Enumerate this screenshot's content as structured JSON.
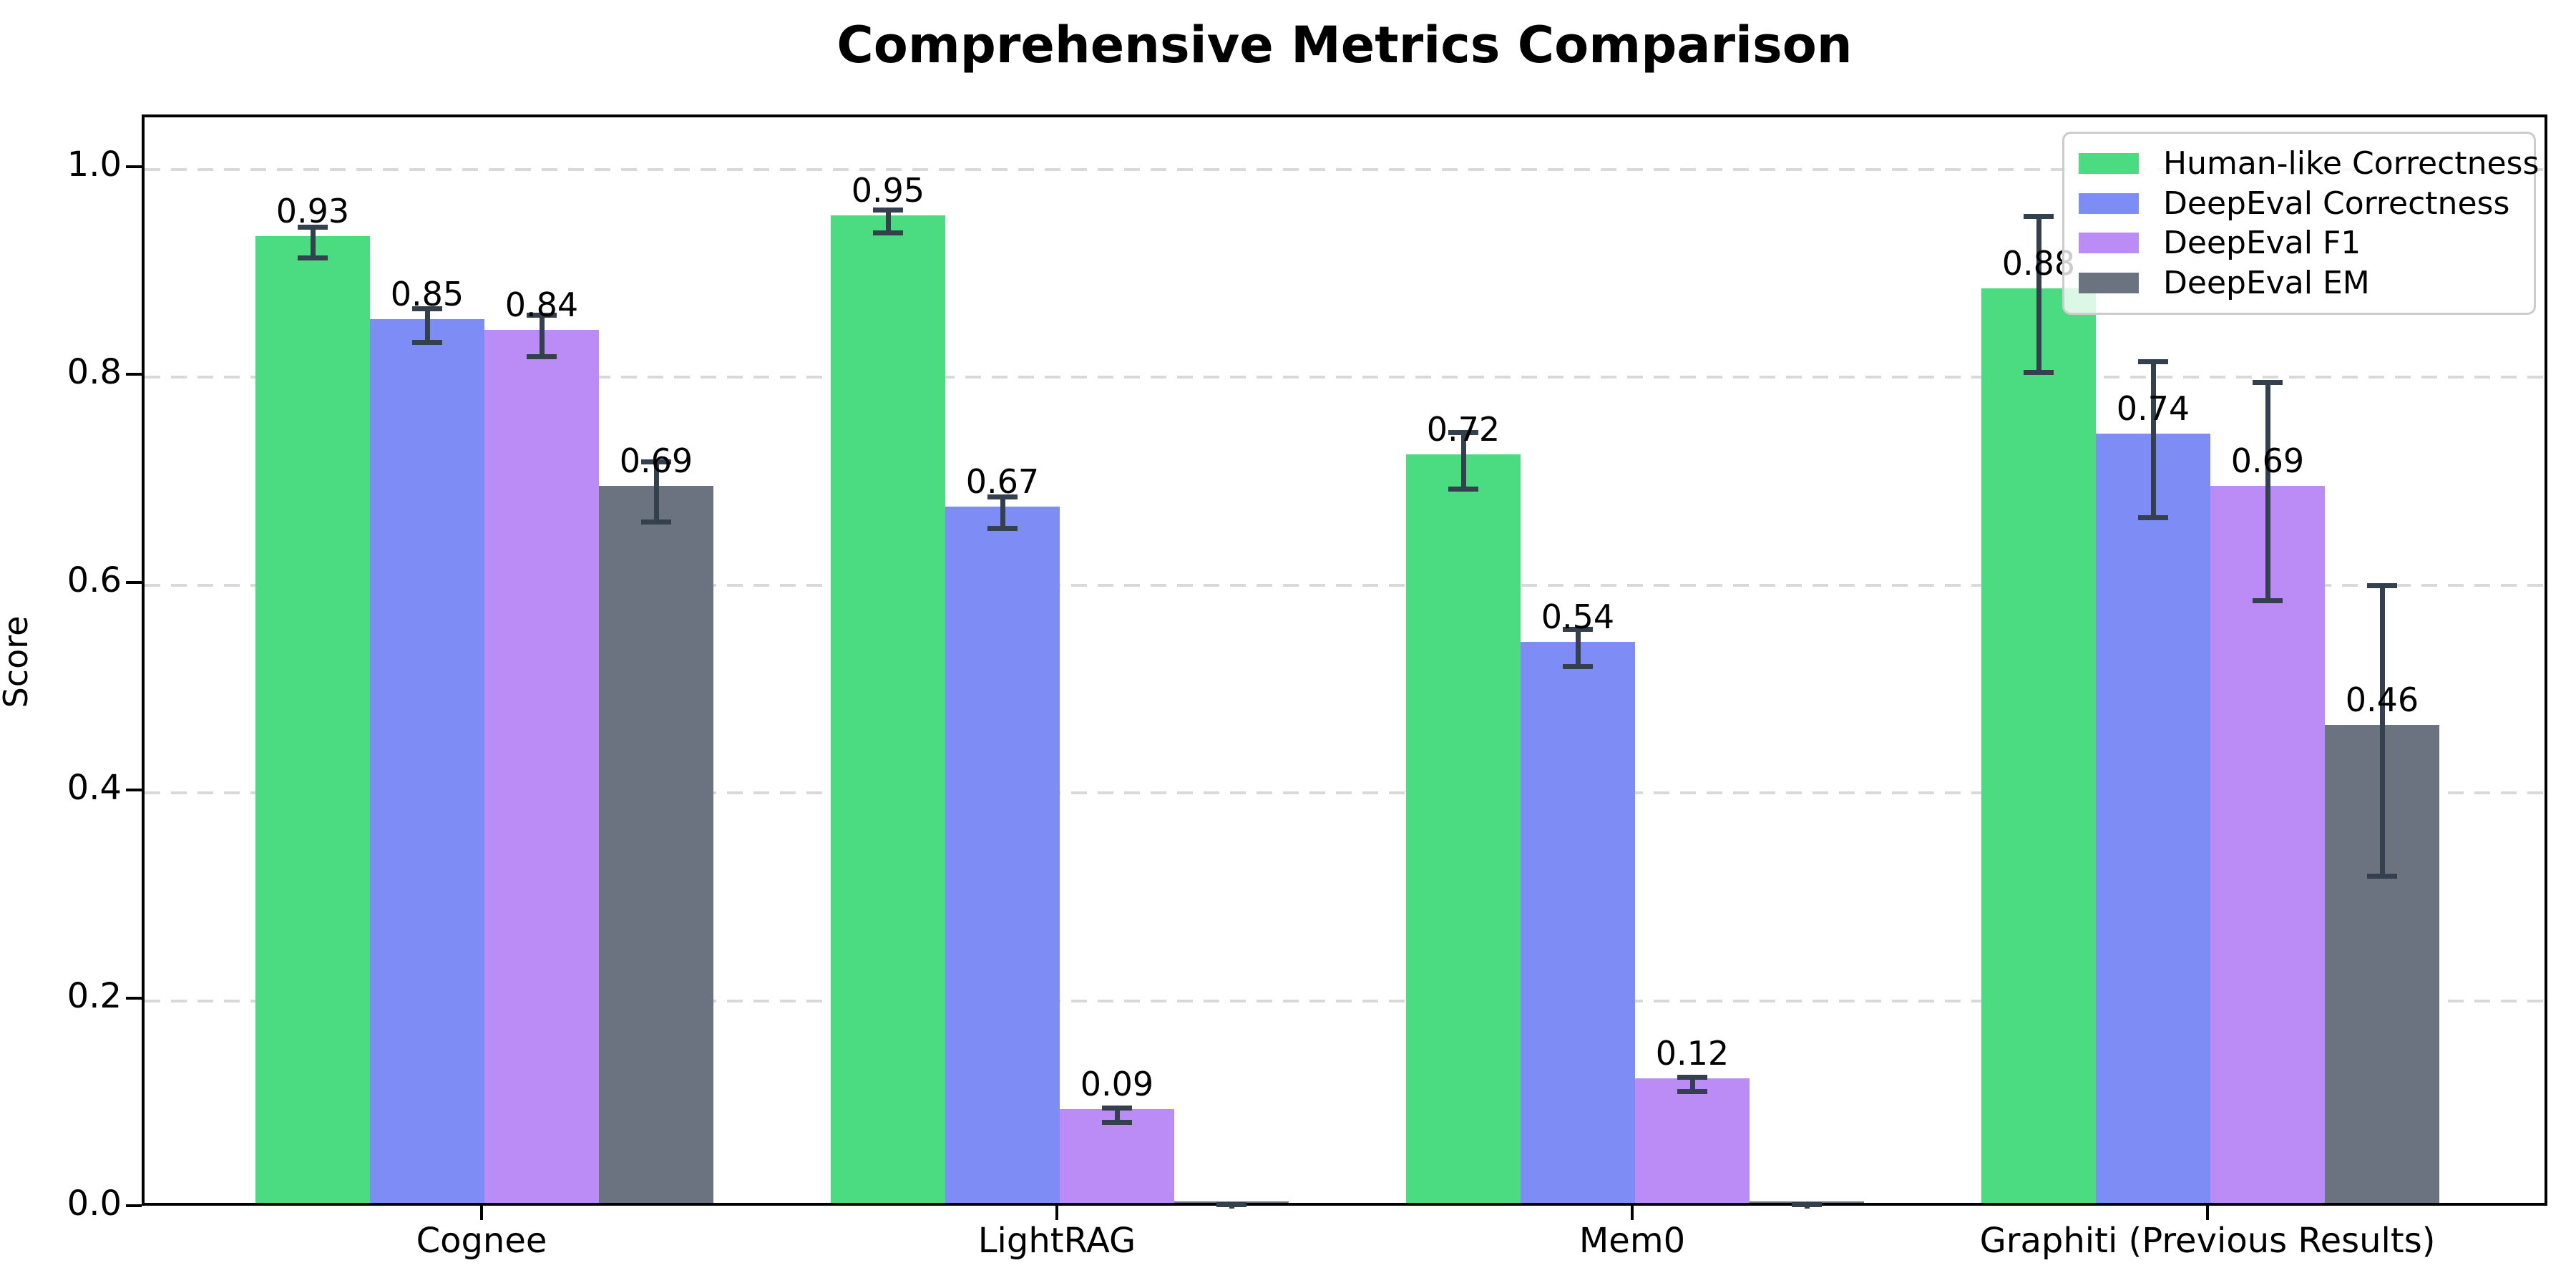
{
  "figure": {
    "title": "Comprehensive Metrics Comparison",
    "ylabel": "Score"
  },
  "chart_data": {
    "type": "bar",
    "title": "Comprehensive Metrics Comparison",
    "xlabel": "",
    "ylabel": "Score",
    "categories": [
      "Cognee",
      "LightRAG",
      "Mem0",
      "Graphiti (Previous Results)"
    ],
    "series": [
      {
        "name": "Human-like Correctness",
        "color": "#4bdc82",
        "values": [
          0.93,
          0.95,
          0.72,
          0.88
        ],
        "errors": [
          0.015,
          0.011,
          0.027,
          0.075
        ],
        "bar_labels": [
          "0.93",
          "0.95",
          "0.72",
          "0.88"
        ]
      },
      {
        "name": "DeepEval Correctness",
        "color": "#7e8cf5",
        "values": [
          0.85,
          0.67,
          0.54,
          0.74
        ],
        "errors": [
          0.016,
          0.015,
          0.018,
          0.075
        ],
        "bar_labels": [
          "0.85",
          "0.67",
          "0.54",
          "0.74"
        ]
      },
      {
        "name": "DeepEval F1",
        "color": "#bb8cf5",
        "values": [
          0.84,
          0.09,
          0.12,
          0.69
        ],
        "errors": [
          0.02,
          0.007,
          0.007,
          0.105
        ],
        "bar_labels": [
          "0.84",
          "0.09",
          "0.12",
          "0.69"
        ]
      },
      {
        "name": "DeepEval EM",
        "color": "#6b7280",
        "values": [
          0.69,
          0.0,
          0.0,
          0.46
        ],
        "errors": [
          0.029,
          0.003,
          0.003,
          0.14
        ],
        "bar_labels": [
          "0.69",
          "",
          "",
          "0.46"
        ]
      }
    ],
    "ylim": [
      0,
      1.05
    ],
    "yticks": [
      0.0,
      0.2,
      0.4,
      0.6,
      0.8,
      1.0
    ],
    "ytick_labels": [
      "0.0",
      "0.2",
      "0.4",
      "0.6",
      "0.8",
      "1.0"
    ],
    "grid": {
      "axis": "y",
      "style": "dashed",
      "color": "#d9d9d9",
      "dash": 22,
      "gap": 15
    },
    "legend_position": "upper right",
    "error_bar_color": "#35404f"
  }
}
